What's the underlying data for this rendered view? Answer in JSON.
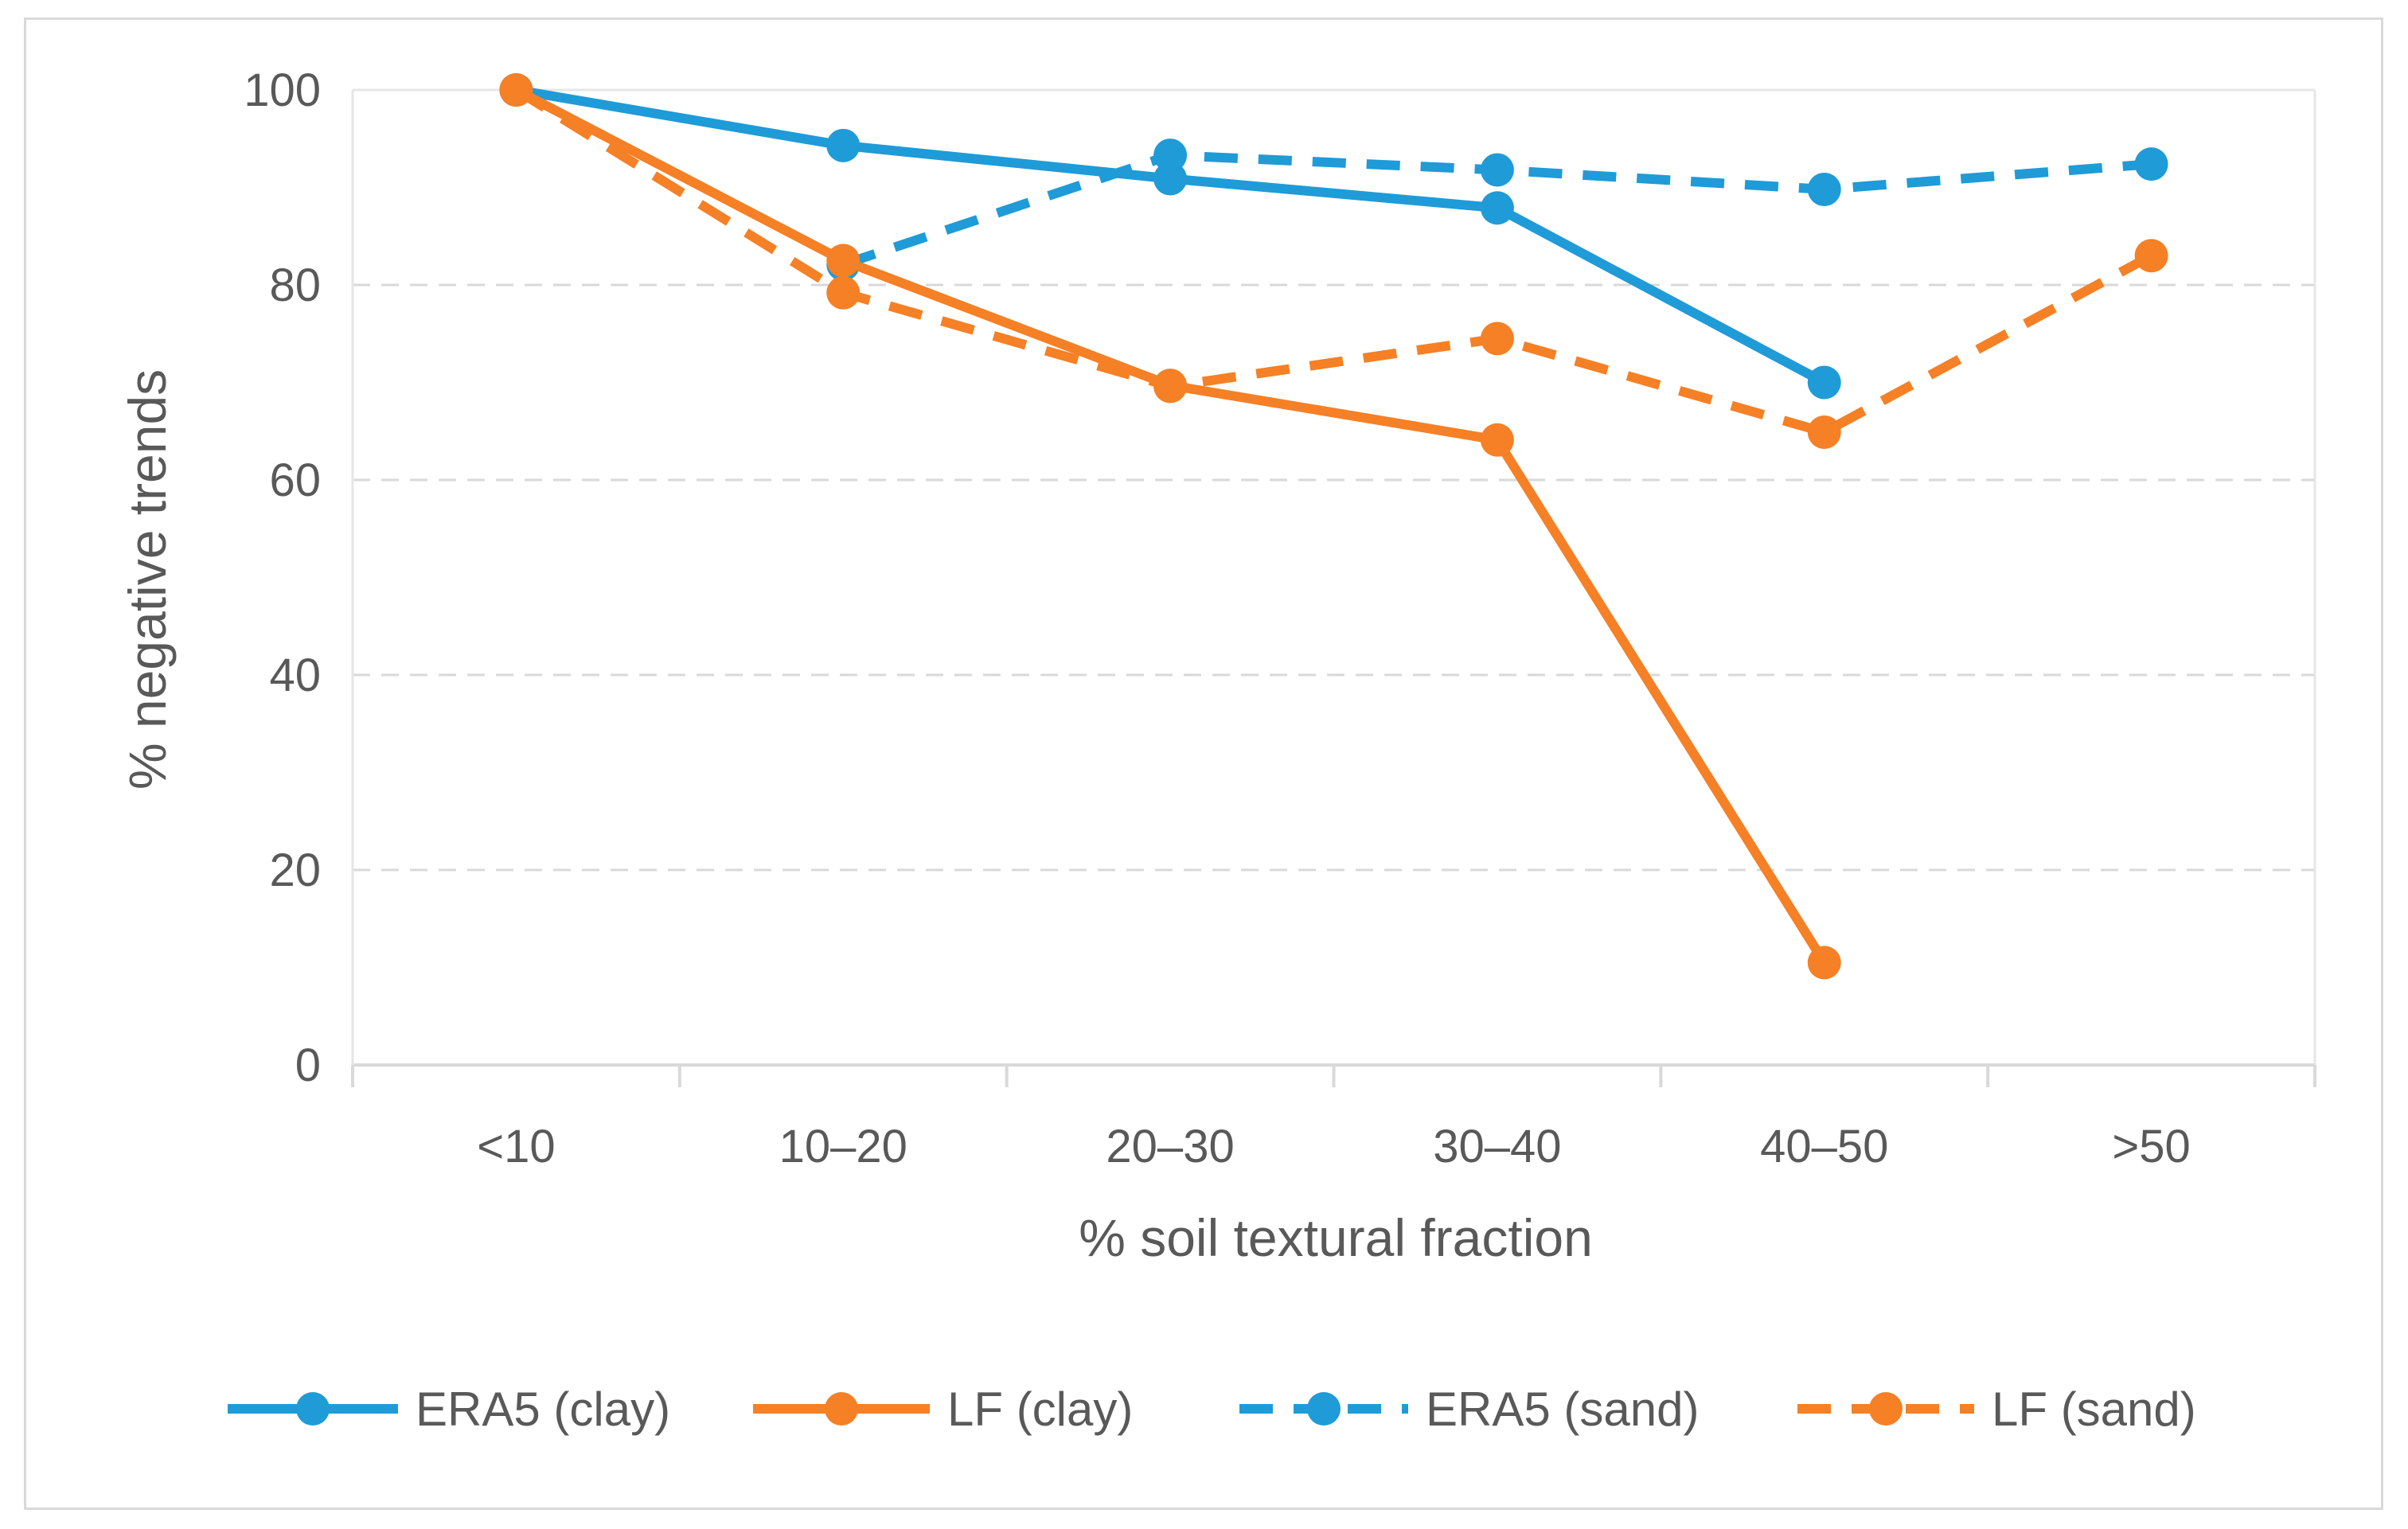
{
  "chart_data": {
    "type": "line",
    "title": "",
    "xlabel": "% soil textural fraction",
    "ylabel": "% negative trends",
    "categories": [
      "<10",
      "10–20",
      "20–30",
      "30–40",
      "40–50",
      ">50"
    ],
    "ylim": [
      0,
      100
    ],
    "yticks": [
      0,
      20,
      40,
      60,
      80,
      100
    ],
    "grid": "horizontal dashed",
    "legend_position": "bottom",
    "series": [
      {
        "name": "ERA5 (clay)",
        "color": "#1f9bd7",
        "dash": "solid",
        "values": [
          100,
          94.3,
          90.9,
          87.9,
          70,
          null
        ]
      },
      {
        "name": "LF (clay)",
        "color": "#f58025",
        "dash": "solid",
        "values": [
          100,
          82.5,
          69.7,
          64.1,
          10.5,
          null
        ]
      },
      {
        "name": "ERA5 (sand)",
        "color": "#1f9bd7",
        "dash": "dashed",
        "values": [
          null,
          82.1,
          93.3,
          91.8,
          89.8,
          92.4
        ]
      },
      {
        "name": "LF (sand)",
        "color": "#f58025",
        "dash": "dashed",
        "values": [
          100,
          79.2,
          69.6,
          74.5,
          64.9,
          83
        ]
      }
    ]
  }
}
